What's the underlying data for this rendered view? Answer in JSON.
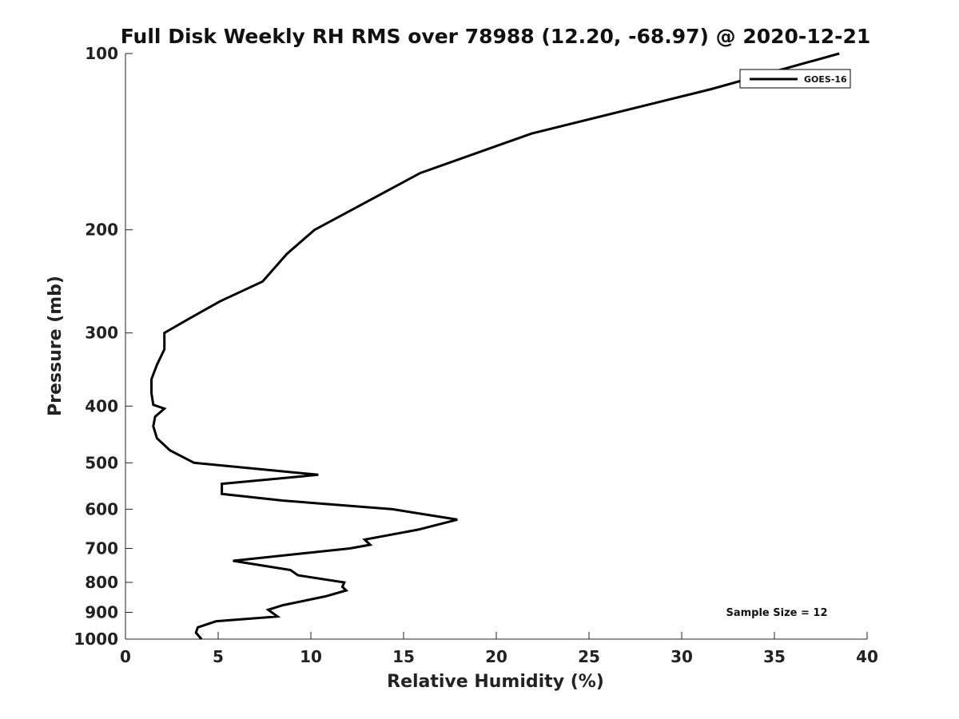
{
  "chart_data": {
    "type": "line",
    "title": "Full Disk Weekly RH RMS over 78988 (12.20, -68.97) @ 2020-12-21",
    "xlabel": "Relative Humidity (%)",
    "ylabel": "Pressure (mb)",
    "xlim": [
      0,
      40
    ],
    "ylim": [
      100,
      1000
    ],
    "y_scale": "log",
    "y_inverted": true,
    "grid": false,
    "legend_position": "top-right",
    "x_ticks": [
      0,
      5,
      10,
      15,
      20,
      25,
      30,
      35,
      40
    ],
    "y_ticks": [
      100,
      200,
      300,
      400,
      500,
      600,
      700,
      800,
      900,
      1000
    ],
    "annotation": "Sample Size = 12",
    "series": [
      {
        "name": "GOES-16",
        "color": "#000000",
        "x": [
          38.5,
          31.6,
          21.9,
          15.9,
          12.2,
          10.2,
          8.7,
          7.4,
          5.1,
          3.4,
          2.1,
          2.1,
          1.7,
          1.4,
          1.4,
          1.5,
          2.1,
          1.6,
          1.5,
          1.7,
          2.4,
          3.7,
          10.4,
          5.2,
          5.2,
          8.5,
          14.4,
          17.9,
          15.8,
          12.9,
          13.2,
          12.1,
          5.8,
          8.9,
          9.3,
          11.8,
          11.7,
          11.9,
          10.8,
          8.5,
          7.7,
          8.2,
          4.9,
          3.9,
          3.8,
          4.1
        ],
        "y": [
          100,
          115,
          137,
          160,
          185,
          200,
          220,
          245,
          265,
          284,
          300,
          320,
          340,
          360,
          380,
          398,
          404,
          417,
          433,
          454,
          476,
          500,
          524,
          543,
          565,
          580,
          600,
          625,
          650,
          676,
          690,
          700,
          735,
          762,
          778,
          800,
          814,
          826,
          845,
          875,
          891,
          915,
          932,
          955,
          975,
          1000
        ]
      }
    ]
  }
}
